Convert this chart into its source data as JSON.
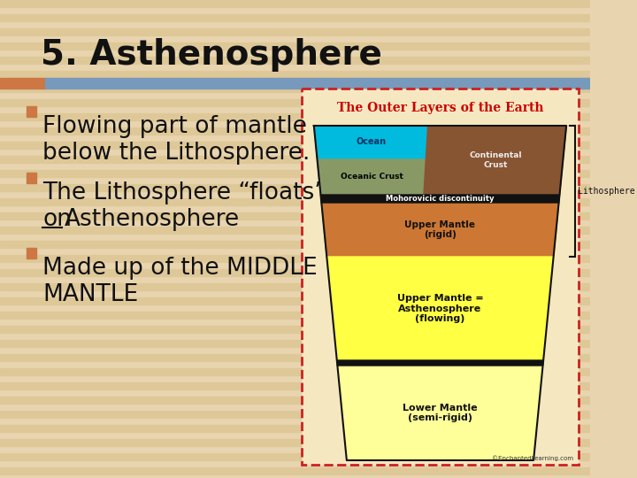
{
  "title": "5. Asthenosphere",
  "bg_color": "#E8D5B0",
  "stripe_color": "#DEC898",
  "header_bar_color1": "#CC7744",
  "header_bar_color2": "#7799BB",
  "title_fontsize": 28,
  "bullet_fontsize": 19,
  "bullet_color": "#CC7744",
  "bullet_items": [
    [
      "Flowing part of mantle",
      "below the Lithosphere."
    ],
    [
      "The Lithosphere “floats”",
      "on Asthenosphere"
    ],
    [
      "Made up of the MIDDLE",
      "MANTLE"
    ]
  ],
  "image_box_color": "#F5E8C0",
  "image_border_color": "#CC2222",
  "diagram_title": "The Outer Layers of the Earth",
  "diagram_title_color": "#CC0000",
  "ocean_color": "#00BBDD",
  "oceanic_crust_color": "#889966",
  "continental_crust_color": "#885533",
  "moho_color": "#111111",
  "upper_mantle_rigid_color": "#CC7733",
  "asthenosphere_color": "#FFFF44",
  "lower_mantle_color": "#FFFF99",
  "copyright_text": "©EnchantedLearning.com"
}
